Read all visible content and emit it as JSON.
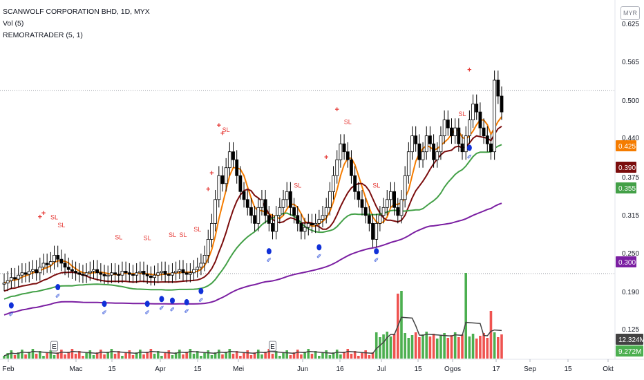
{
  "legend": {
    "title": "SCANWOLF CORPORATION BHD, 1D, MYX",
    "volume": "Vol (5)",
    "indicator": "REMORATRADER (5, 1)"
  },
  "currency_button": "MYR",
  "colors": {
    "up": "#ffffff",
    "down": "#000000",
    "wick": "#000000",
    "ma_orange": "#f57c00",
    "ma_maroon": "#7b0d0d",
    "ma_green": "#43a047",
    "ma_purple": "#7b1fa2",
    "vol_up": "#4caf50",
    "vol_down": "#ef5350",
    "vol_line": "#424242",
    "buy_dot": "#1030d8",
    "signal": "#e53935"
  },
  "chart_data": {
    "type": "candlestick",
    "title": "SCANWOLF CORPORATION BHD, 1D, MYX",
    "y_axis_ticks": [
      "0.625",
      "0.565",
      "0.500",
      "0.440",
      "0.375",
      "0.315",
      "0.250",
      "0.190",
      "0.125"
    ],
    "x_axis_ticks": [
      "Feb",
      "Mac",
      "15",
      "Apr",
      "15",
      "Mei",
      "Jun",
      "16",
      "Jul",
      "15",
      "Ogos",
      "17",
      "Sep",
      "15",
      "Okt"
    ],
    "price_tags": [
      {
        "label": "0.425",
        "color": "#f57c00"
      },
      {
        "label": "0.390",
        "color": "#7b0d0d"
      },
      {
        "label": "0.355",
        "color": "#43a047"
      },
      {
        "label": "0.300",
        "color": "#7b1fa2"
      }
    ],
    "volume_tags": [
      {
        "label": "12.324M",
        "color": "#424242"
      },
      {
        "label": "9.272M",
        "color": "#4caf50"
      }
    ],
    "earnings_markers": [
      "E",
      "E"
    ],
    "signal_labels": {
      "sell": "SL",
      "buy": "+"
    },
    "closes": [
      0.245,
      0.248,
      0.252,
      0.25,
      0.255,
      0.258,
      0.256,
      0.26,
      0.262,
      0.258,
      0.265,
      0.27,
      0.268,
      0.272,
      0.28,
      0.275,
      0.27,
      0.265,
      0.262,
      0.26,
      0.258,
      0.256,
      0.255,
      0.258,
      0.26,
      0.262,
      0.258,
      0.256,
      0.254,
      0.255,
      0.258,
      0.256,
      0.255,
      0.26,
      0.258,
      0.256,
      0.255,
      0.258,
      0.26,
      0.256,
      0.254,
      0.252,
      0.255,
      0.258,
      0.26,
      0.256,
      0.255,
      0.258,
      0.26,
      0.262,
      0.258,
      0.256,
      0.258,
      0.262,
      0.265,
      0.27,
      0.28,
      0.3,
      0.32,
      0.35,
      0.38,
      0.37,
      0.39,
      0.41,
      0.4,
      0.38,
      0.36,
      0.35,
      0.34,
      0.33,
      0.32,
      0.34,
      0.35,
      0.33,
      0.32,
      0.31,
      0.33,
      0.34,
      0.35,
      0.36,
      0.34,
      0.33,
      0.32,
      0.31,
      0.315,
      0.32,
      0.318,
      0.32,
      0.325,
      0.33,
      0.34,
      0.36,
      0.38,
      0.4,
      0.42,
      0.41,
      0.4,
      0.38,
      0.36,
      0.35,
      0.34,
      0.33,
      0.32,
      0.3,
      0.32,
      0.33,
      0.34,
      0.35,
      0.36,
      0.34,
      0.33,
      0.35,
      0.38,
      0.41,
      0.43,
      0.42,
      0.4,
      0.41,
      0.43,
      0.42,
      0.4,
      0.41,
      0.43,
      0.45,
      0.44,
      0.43,
      0.44,
      0.42,
      0.41,
      0.43,
      0.45,
      0.47,
      0.46,
      0.44,
      0.43,
      0.42,
      0.41,
      0.5,
      0.48,
      0.46
    ]
  }
}
